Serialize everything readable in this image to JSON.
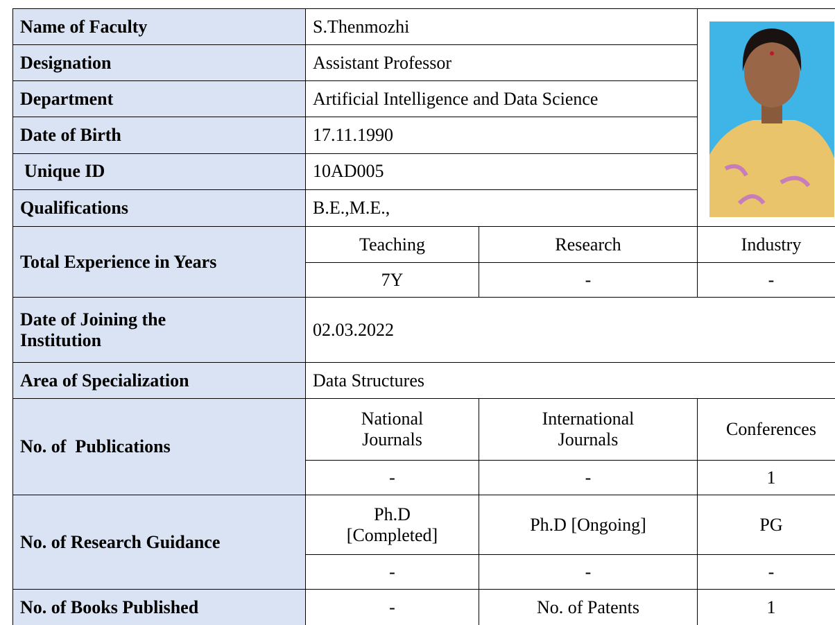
{
  "fields": [
    {
      "label": "Name of Faculty",
      "value": "S.Thenmozhi"
    },
    {
      "label": "Designation",
      "value": "Assistant Professor"
    },
    {
      "label": "Department",
      "value": "Artificial Intelligence and Data Science"
    },
    {
      "label": "Date of Birth",
      "value": "17.11.1990"
    },
    {
      "label": "Unique ID",
      "value": "10AD005"
    },
    {
      "label": "Qualifications",
      "value": "B.E.,M.E.,"
    }
  ],
  "experience": {
    "label": "Total Experience in Years",
    "headers": [
      "Teaching",
      "Research",
      "Industry"
    ],
    "values": [
      "7Y",
      "-",
      "-"
    ]
  },
  "joining": {
    "label": "Date of Joining the Institution",
    "value": "02.03.2022"
  },
  "specialization": {
    "label": "Area of Specialization",
    "value": "Data Structures"
  },
  "publications": {
    "label": "No. of  Publications",
    "headers": [
      "National Journals",
      "International Journals",
      "Conferences"
    ],
    "values": [
      "-",
      "-",
      "1"
    ]
  },
  "research_guidance": {
    "label": "No. of Research Guidance",
    "headers": [
      "Ph.D [Completed]",
      "Ph.D [Ongoing]",
      "PG"
    ],
    "values": [
      "-",
      "-",
      "-"
    ]
  },
  "books": {
    "label": "No. of Books Published",
    "value": "-",
    "patents_label": "No. of Patents",
    "patents_value": "1"
  }
}
